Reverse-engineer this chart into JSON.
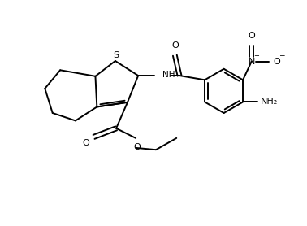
{
  "bg_color": "#ffffff",
  "line_color": "#000000",
  "line_width": 1.4,
  "font_size": 7.5,
  "figsize": [
    3.78,
    2.78
  ],
  "dpi": 100,
  "xlim": [
    0,
    10
  ],
  "ylim": [
    0,
    7.0
  ]
}
